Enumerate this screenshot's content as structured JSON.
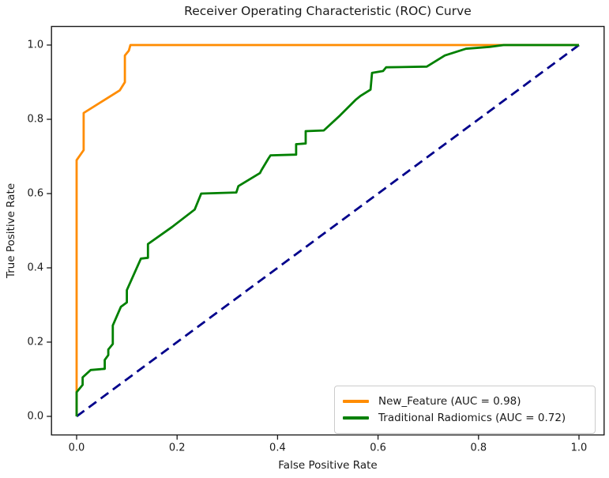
{
  "chart_data": {
    "type": "line",
    "title": "Receiver Operating Characteristic (ROC) Curve",
    "xlabel": "False Positive Rate",
    "ylabel": "True Positive Rate",
    "xlim": [
      -0.05,
      1.05
    ],
    "ylim": [
      -0.05,
      1.05
    ],
    "xticks": [
      "0.0",
      "0.2",
      "0.4",
      "0.6",
      "0.8",
      "1.0"
    ],
    "yticks": [
      "0.0",
      "0.2",
      "0.4",
      "0.6",
      "0.8",
      "1.0"
    ],
    "grid": false,
    "legend_position": "lower right",
    "colors": {
      "axis": "#1a1a1a",
      "text": "#1a1a1a",
      "legend_border": "#cccccc",
      "background": "#ffffff"
    },
    "chance_line": {
      "name": "chance-diagonal",
      "color": "#00008b",
      "style": "dashed",
      "points": [
        [
          0,
          0
        ],
        [
          1,
          1
        ]
      ]
    },
    "series": [
      {
        "name": "New_Feature",
        "label": "New_Feature (AUC = 0.98)",
        "auc": 0.98,
        "color": "#ff8c00",
        "style": "solid",
        "points": [
          [
            0,
            0
          ],
          [
            0,
            0.69
          ],
          [
            0.014,
            0.717
          ],
          [
            0.014,
            0.817
          ],
          [
            0.086,
            0.878
          ],
          [
            0.096,
            0.9
          ],
          [
            0.096,
            0.972
          ],
          [
            0.104,
            0.985
          ],
          [
            0.107,
            1.0
          ],
          [
            1.0,
            1.0
          ]
        ]
      },
      {
        "name": "Traditional Radiomics",
        "label": "Traditional Radiomics (AUC = 0.72)",
        "auc": 0.72,
        "color": "#008000",
        "style": "solid",
        "points": [
          [
            0,
            0
          ],
          [
            0,
            0.065
          ],
          [
            0.012,
            0.085
          ],
          [
            0.012,
            0.105
          ],
          [
            0.028,
            0.125
          ],
          [
            0.056,
            0.128
          ],
          [
            0.056,
            0.152
          ],
          [
            0.063,
            0.165
          ],
          [
            0.063,
            0.18
          ],
          [
            0.072,
            0.195
          ],
          [
            0.072,
            0.245
          ],
          [
            0.088,
            0.295
          ],
          [
            0.1,
            0.307
          ],
          [
            0.1,
            0.34
          ],
          [
            0.128,
            0.425
          ],
          [
            0.142,
            0.427
          ],
          [
            0.142,
            0.464
          ],
          [
            0.19,
            0.51
          ],
          [
            0.235,
            0.557
          ],
          [
            0.248,
            0.6
          ],
          [
            0.318,
            0.603
          ],
          [
            0.322,
            0.62
          ],
          [
            0.365,
            0.655
          ],
          [
            0.368,
            0.663
          ],
          [
            0.382,
            0.695
          ],
          [
            0.386,
            0.703
          ],
          [
            0.437,
            0.705
          ],
          [
            0.437,
            0.733
          ],
          [
            0.456,
            0.735
          ],
          [
            0.456,
            0.768
          ],
          [
            0.492,
            0.77
          ],
          [
            0.524,
            0.81
          ],
          [
            0.555,
            0.852
          ],
          [
            0.565,
            0.863
          ],
          [
            0.585,
            0.88
          ],
          [
            0.588,
            0.925
          ],
          [
            0.61,
            0.93
          ],
          [
            0.616,
            0.94
          ],
          [
            0.697,
            0.942
          ],
          [
            0.733,
            0.972
          ],
          [
            0.775,
            0.99
          ],
          [
            0.822,
            0.995
          ],
          [
            0.85,
            1.0
          ],
          [
            1.0,
            1.0
          ]
        ]
      }
    ]
  }
}
